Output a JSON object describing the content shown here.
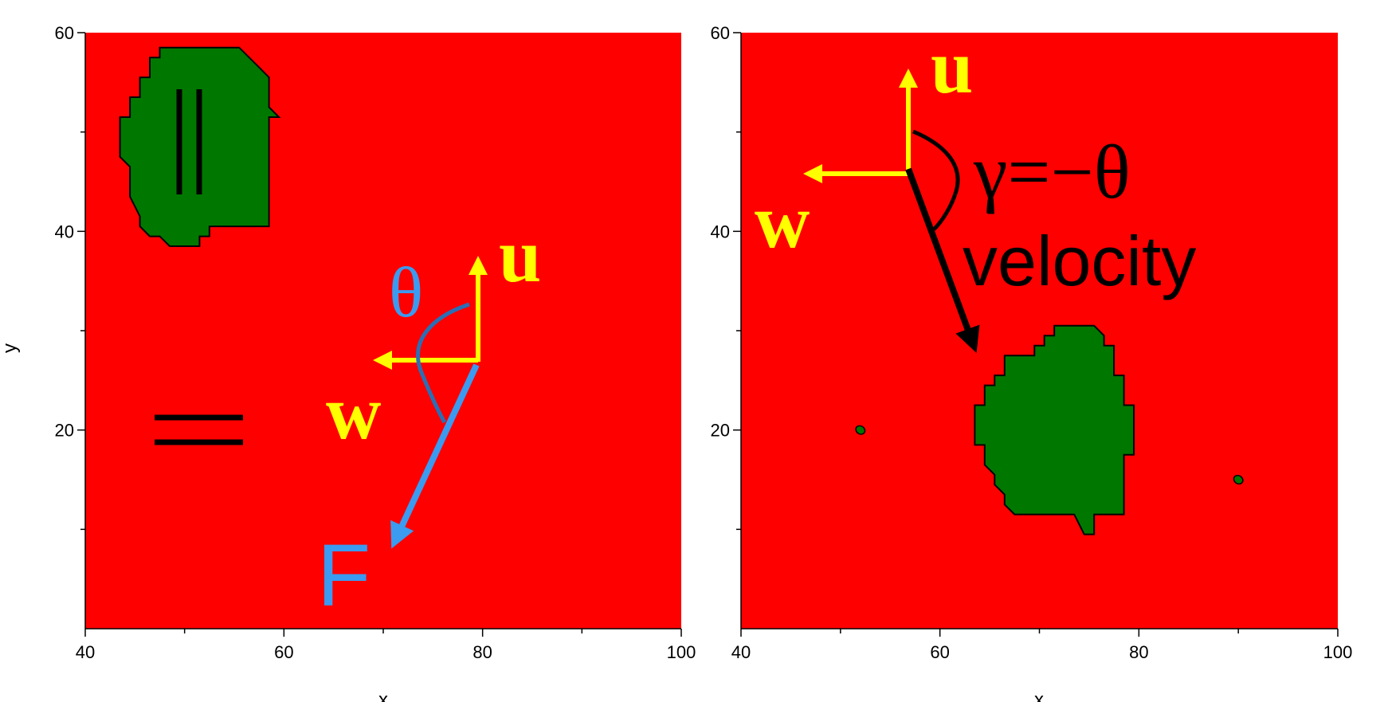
{
  "colors": {
    "background_field": "#ff0000",
    "region": "#007800",
    "vector_u_w": "#ffff00",
    "force_and_theta": "#3a9bf0",
    "velocity": "#000000"
  },
  "chart_data": [
    {
      "type": "heatmap",
      "panel": "left",
      "xlabel": "x",
      "ylabel": "y",
      "xlim": [
        40,
        100
      ],
      "ylim": [
        0,
        60
      ],
      "x_ticks": [
        40,
        60,
        80,
        100
      ],
      "y_ticks": [
        20,
        40,
        60
      ],
      "region_outline": [
        [
          47.5,
          58.5
        ],
        [
          52.5,
          58.5
        ],
        [
          55.5,
          58.5
        ],
        [
          57.5,
          56.5
        ],
        [
          58.5,
          55.5
        ],
        [
          58.5,
          52.5
        ],
        [
          59.5,
          51.5
        ],
        [
          58.5,
          51.5
        ],
        [
          58.5,
          40.5
        ],
        [
          55.5,
          40.5
        ],
        [
          52.5,
          40.5
        ],
        [
          52.5,
          39.5
        ],
        [
          51.5,
          39.5
        ],
        [
          51.5,
          38.5
        ],
        [
          49.5,
          38.5
        ],
        [
          48.5,
          38.5
        ],
        [
          47.5,
          39.5
        ],
        [
          46.5,
          39.5
        ],
        [
          45.5,
          40.5
        ],
        [
          45.5,
          41.5
        ],
        [
          44.5,
          43.5
        ],
        [
          44.5,
          46.5
        ],
        [
          43.5,
          47.5
        ],
        [
          43.5,
          51.5
        ],
        [
          44.5,
          51.5
        ],
        [
          44.5,
          53.5
        ],
        [
          45.5,
          53.5
        ],
        [
          45.5,
          55.5
        ],
        [
          46.5,
          55.5
        ],
        [
          46.5,
          57.5
        ],
        [
          47.5,
          57.5
        ]
      ],
      "annotations": {
        "parallel_symbol": "||",
        "equal_symbol": "=",
        "u_label": "u",
        "w_label": "w",
        "theta_label": "θ",
        "force_label": "F"
      }
    },
    {
      "type": "heatmap",
      "panel": "right",
      "xlabel": "x",
      "ylabel": "",
      "xlim": [
        40,
        100
      ],
      "ylim": [
        0,
        60
      ],
      "x_ticks": [
        40,
        60,
        80,
        100
      ],
      "y_ticks": [
        20,
        40,
        60
      ],
      "region_outline": [
        [
          71.5,
          30.5
        ],
        [
          75.5,
          30.5
        ],
        [
          76.5,
          29.5
        ],
        [
          76.5,
          28.5
        ],
        [
          77.5,
          28.5
        ],
        [
          77.5,
          25.5
        ],
        [
          78.5,
          25.5
        ],
        [
          78.5,
          22.5
        ],
        [
          79.5,
          22.5
        ],
        [
          79.5,
          17.5
        ],
        [
          78.5,
          17.5
        ],
        [
          78.5,
          11.5
        ],
        [
          75.5,
          11.5
        ],
        [
          75.5,
          9.5
        ],
        [
          74.5,
          9.5
        ],
        [
          73.5,
          11.5
        ],
        [
          69.5,
          11.5
        ],
        [
          67.5,
          11.5
        ],
        [
          66.5,
          12.5
        ],
        [
          66.5,
          13.5
        ],
        [
          65.5,
          14.5
        ],
        [
          65.5,
          15.5
        ],
        [
          64.5,
          16.5
        ],
        [
          64.5,
          18.5
        ],
        [
          63.5,
          18.5
        ],
        [
          63.5,
          22.5
        ],
        [
          64.5,
          22.5
        ],
        [
          64.5,
          24.5
        ],
        [
          65.5,
          24.5
        ],
        [
          65.5,
          25.5
        ],
        [
          66.5,
          25.5
        ],
        [
          66.5,
          27.5
        ],
        [
          69.5,
          27.5
        ],
        [
          69.5,
          28.5
        ],
        [
          70.5,
          28.5
        ],
        [
          70.5,
          29.5
        ],
        [
          71.5,
          29.5
        ]
      ],
      "small_spots": [
        [
          52,
          20
        ],
        [
          90,
          15
        ]
      ],
      "annotations": {
        "u_label": "u",
        "w_label": "w",
        "gamma_label": "γ=−θ",
        "velocity_label": "velocity"
      }
    }
  ]
}
